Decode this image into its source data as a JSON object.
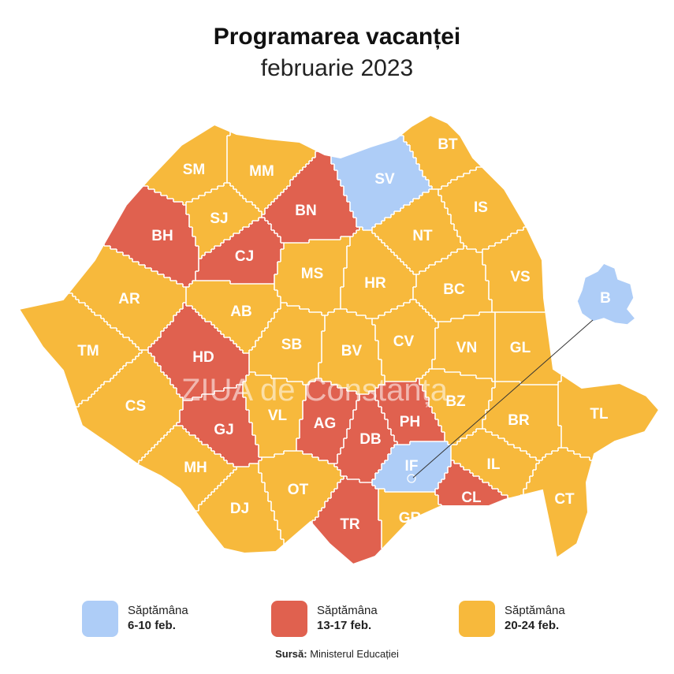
{
  "title": "Programarea vacanței",
  "subtitle": "februarie 2023",
  "watermark": "ZIUA de Constanța",
  "colors": {
    "week1": "#aecdf7",
    "week2": "#e0614f",
    "week3": "#f7b93c",
    "border": "#ffffff"
  },
  "legend": [
    {
      "label": "Săptămâna",
      "dates": "6-10 feb.",
      "color": "#aecdf7"
    },
    {
      "label": "Săptămâna",
      "dates": "13-17 feb.",
      "color": "#e0614f"
    },
    {
      "label": "Săptămâna",
      "dates": "20-24 feb.",
      "color": "#f7b93c"
    }
  ],
  "source": {
    "label": "Sursă:",
    "text": "Ministerul Educației"
  },
  "counties": [
    {
      "code": "SM",
      "week": 3
    },
    {
      "code": "MM",
      "week": 3
    },
    {
      "code": "SV",
      "week": 1
    },
    {
      "code": "BT",
      "week": 3
    },
    {
      "code": "BH",
      "week": 2
    },
    {
      "code": "SJ",
      "week": 3
    },
    {
      "code": "BN",
      "week": 2
    },
    {
      "code": "IS",
      "week": 3
    },
    {
      "code": "CJ",
      "week": 2
    },
    {
      "code": "NT",
      "week": 3
    },
    {
      "code": "AR",
      "week": 3
    },
    {
      "code": "MS",
      "week": 3
    },
    {
      "code": "HR",
      "week": 3
    },
    {
      "code": "BC",
      "week": 3
    },
    {
      "code": "VS",
      "week": 3
    },
    {
      "code": "AB",
      "week": 3
    },
    {
      "code": "TM",
      "week": 3
    },
    {
      "code": "HD",
      "week": 2
    },
    {
      "code": "SB",
      "week": 3
    },
    {
      "code": "BV",
      "week": 3
    },
    {
      "code": "CV",
      "week": 3
    },
    {
      "code": "VN",
      "week": 3
    },
    {
      "code": "GL",
      "week": 3
    },
    {
      "code": "CS",
      "week": 3
    },
    {
      "code": "AG",
      "week": 2
    },
    {
      "code": "PH",
      "week": 2
    },
    {
      "code": "BZ",
      "week": 3
    },
    {
      "code": "VL",
      "week": 3
    },
    {
      "code": "GJ",
      "week": 2
    },
    {
      "code": "DB",
      "week": 2
    },
    {
      "code": "BR",
      "week": 3
    },
    {
      "code": "TL",
      "week": 3
    },
    {
      "code": "MH",
      "week": 3
    },
    {
      "code": "IF",
      "week": 1
    },
    {
      "code": "IL",
      "week": 3
    },
    {
      "code": "DJ",
      "week": 3
    },
    {
      "code": "OT",
      "week": 3
    },
    {
      "code": "CL",
      "week": 2
    },
    {
      "code": "CT",
      "week": 3
    },
    {
      "code": "TR",
      "week": 2
    },
    {
      "code": "GR",
      "week": 3
    },
    {
      "code": "B",
      "week": 1
    }
  ]
}
